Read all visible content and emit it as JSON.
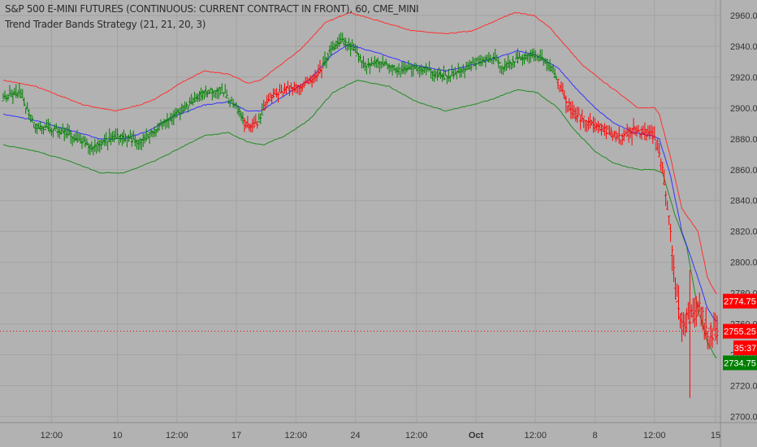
{
  "header": {
    "symbol_line": "S&P 500 E-MINI FUTURES (CONTINUOUS: CURRENT CONTRACT IN FRONT), 60, CME_MINI",
    "study_line": "Trend Trader Bands Strategy (21, 21, 20, 3)"
  },
  "colors": {
    "background": "#b2b2b2",
    "grid": "#a3a3a3",
    "upper_band": "#ff3030",
    "middle_band": "#3333ff",
    "lower_band": "#228b22",
    "bull_bar": "#008000",
    "bear_bar": "#ff0000",
    "axis_text": "#333333"
  },
  "chart_data": {
    "type": "line",
    "title": "S&P 500 E-MINI FUTURES (CONTINUOUS: CURRENT CONTRACT IN FRONT), 60, CME_MINI",
    "study": "Trend Trader Bands Strategy (21, 21, 20, 3)",
    "ylim": [
      2696,
      2970
    ],
    "y_ticks": [
      2700,
      2720,
      2740,
      2760,
      2780,
      2800,
      2820,
      2840,
      2860,
      2880,
      2900,
      2920,
      2940,
      2960
    ],
    "y_tick_labels": [
      "2700.00",
      "2720.00",
      "2740.00",
      "2760.00",
      "2780.00",
      "2800.00",
      "2820.00",
      "2840.00",
      "2860.00",
      "2880.00",
      "2900.00",
      "2920.00",
      "2940.00",
      "2960.00"
    ],
    "x_ticks": [
      {
        "label": "12:00",
        "bar": 30
      },
      {
        "label": "10",
        "bar": 71
      },
      {
        "label": "12:00",
        "bar": 108
      },
      {
        "label": "17",
        "bar": 145
      },
      {
        "label": "12:00",
        "bar": 182
      },
      {
        "label": "24",
        "bar": 219
      },
      {
        "label": "12:00",
        "bar": 257
      },
      {
        "label": "Oct",
        "bar": 294
      },
      {
        "label": "12:00",
        "bar": 331
      },
      {
        "label": "8",
        "bar": 368
      },
      {
        "label": "12:00",
        "bar": 405
      },
      {
        "label": "15",
        "bar": 443
      }
    ],
    "bar_count": 445,
    "close_anchors": [
      [
        0,
        2906
      ],
      [
        10,
        2910
      ],
      [
        20,
        2888
      ],
      [
        40,
        2884
      ],
      [
        55,
        2874
      ],
      [
        70,
        2882
      ],
      [
        85,
        2878
      ],
      [
        95,
        2886
      ],
      [
        110,
        2898
      ],
      [
        125,
        2910
      ],
      [
        135,
        2912
      ],
      [
        145,
        2900
      ],
      [
        152,
        2888
      ],
      [
        158,
        2890
      ],
      [
        165,
        2906
      ],
      [
        175,
        2912
      ],
      [
        185,
        2914
      ],
      [
        195,
        2920
      ],
      [
        203,
        2936
      ],
      [
        210,
        2944
      ],
      [
        218,
        2938
      ],
      [
        225,
        2928
      ],
      [
        235,
        2930
      ],
      [
        245,
        2925
      ],
      [
        255,
        2926
      ],
      [
        265,
        2924
      ],
      [
        275,
        2920
      ],
      [
        285,
        2924
      ],
      [
        295,
        2930
      ],
      [
        305,
        2932
      ],
      [
        312,
        2926
      ],
      [
        320,
        2932
      ],
      [
        330,
        2935
      ],
      [
        338,
        2930
      ],
      [
        345,
        2918
      ],
      [
        350,
        2905
      ],
      [
        355,
        2896
      ],
      [
        362,
        2892
      ],
      [
        370,
        2888
      ],
      [
        378,
        2884
      ],
      [
        385,
        2880
      ],
      [
        392,
        2886
      ],
      [
        400,
        2884
      ],
      [
        405,
        2882
      ],
      [
        410,
        2860
      ],
      [
        415,
        2820
      ],
      [
        418,
        2780
      ],
      [
        422,
        2760
      ],
      [
        428,
        2765
      ],
      [
        433,
        2770
      ],
      [
        438,
        2755
      ],
      [
        444,
        2753
      ]
    ],
    "upper_anchors": [
      [
        0,
        2918
      ],
      [
        20,
        2914
      ],
      [
        35,
        2908
      ],
      [
        50,
        2902
      ],
      [
        70,
        2898
      ],
      [
        85,
        2902
      ],
      [
        95,
        2906
      ],
      [
        110,
        2916
      ],
      [
        125,
        2924
      ],
      [
        140,
        2922
      ],
      [
        152,
        2916
      ],
      [
        160,
        2918
      ],
      [
        170,
        2926
      ],
      [
        185,
        2938
      ],
      [
        200,
        2955
      ],
      [
        215,
        2962
      ],
      [
        235,
        2956
      ],
      [
        255,
        2950
      ],
      [
        275,
        2948
      ],
      [
        292,
        2950
      ],
      [
        305,
        2956
      ],
      [
        318,
        2962
      ],
      [
        330,
        2960
      ],
      [
        340,
        2952
      ],
      [
        350,
        2940
      ],
      [
        360,
        2928
      ],
      [
        372,
        2918
      ],
      [
        385,
        2908
      ],
      [
        395,
        2900
      ],
      [
        405,
        2900
      ],
      [
        408,
        2896
      ],
      [
        415,
        2868
      ],
      [
        422,
        2835
      ],
      [
        432,
        2820
      ],
      [
        438,
        2790
      ],
      [
        443,
        2780
      ]
    ],
    "middle_anchors": [
      [
        0,
        2896
      ],
      [
        20,
        2892
      ],
      [
        40,
        2886
      ],
      [
        60,
        2880
      ],
      [
        75,
        2880
      ],
      [
        90,
        2885
      ],
      [
        105,
        2894
      ],
      [
        125,
        2902
      ],
      [
        140,
        2904
      ],
      [
        152,
        2898
      ],
      [
        160,
        2898
      ],
      [
        172,
        2906
      ],
      [
        190,
        2918
      ],
      [
        205,
        2935
      ],
      [
        215,
        2941
      ],
      [
        235,
        2935
      ],
      [
        255,
        2928
      ],
      [
        275,
        2924
      ],
      [
        292,
        2928
      ],
      [
        305,
        2932
      ],
      [
        320,
        2937
      ],
      [
        332,
        2934
      ],
      [
        345,
        2926
      ],
      [
        355,
        2914
      ],
      [
        368,
        2900
      ],
      [
        380,
        2890
      ],
      [
        392,
        2884
      ],
      [
        404,
        2882
      ],
      [
        408,
        2880
      ],
      [
        415,
        2856
      ],
      [
        422,
        2820
      ],
      [
        432,
        2790
      ],
      [
        438,
        2770
      ],
      [
        443,
        2762
      ]
    ],
    "lower_anchors": [
      [
        0,
        2876
      ],
      [
        20,
        2872
      ],
      [
        40,
        2866
      ],
      [
        60,
        2858
      ],
      [
        75,
        2858
      ],
      [
        95,
        2866
      ],
      [
        110,
        2874
      ],
      [
        125,
        2882
      ],
      [
        140,
        2884
      ],
      [
        152,
        2878
      ],
      [
        162,
        2876
      ],
      [
        175,
        2882
      ],
      [
        190,
        2892
      ],
      [
        205,
        2910
      ],
      [
        220,
        2918
      ],
      [
        240,
        2914
      ],
      [
        255,
        2905
      ],
      [
        275,
        2898
      ],
      [
        292,
        2902
      ],
      [
        305,
        2906
      ],
      [
        320,
        2912
      ],
      [
        332,
        2910
      ],
      [
        345,
        2900
      ],
      [
        355,
        2886
      ],
      [
        368,
        2872
      ],
      [
        380,
        2864
      ],
      [
        395,
        2860
      ],
      [
        405,
        2860
      ],
      [
        410,
        2858
      ],
      [
        418,
        2830
      ],
      [
        425,
        2810
      ],
      [
        432,
        2770
      ],
      [
        438,
        2748
      ],
      [
        443,
        2738
      ]
    ],
    "red_segments": [
      [
        150,
        158
      ],
      [
        162,
        198
      ],
      [
        345,
        445
      ]
    ],
    "price_tags": [
      {
        "label": "2774.75",
        "value": 2774.75,
        "color": "#ff0000"
      },
      {
        "label": "2755.25",
        "value": 2755.25,
        "color": "#ff0000"
      },
      {
        "label": "35:37",
        "value": 2744.5,
        "color": "#ff0000",
        "short": true
      },
      {
        "label": "2734.75",
        "value": 2734.75,
        "color": "#008000"
      }
    ],
    "last_price_line": 2755.25,
    "grid": true,
    "legend": "top-left"
  }
}
